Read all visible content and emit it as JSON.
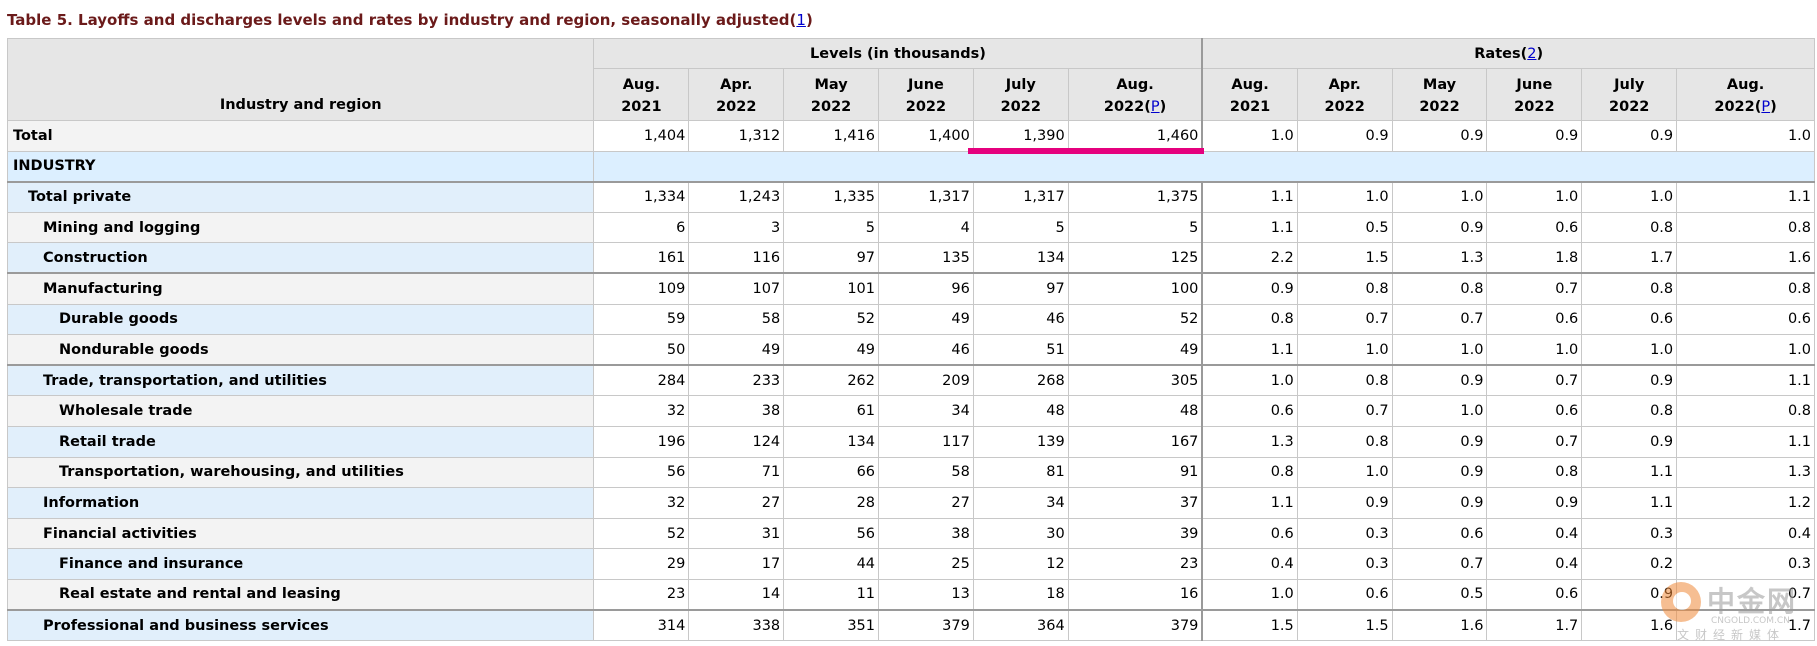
{
  "caption": {
    "title": "Table 5. Layoffs and discharges levels and rates by industry and region, seasonally adjusted",
    "footnote_open": "(",
    "footnote_link": "1",
    "footnote_close": ")"
  },
  "header": {
    "stub": "Industry and region",
    "levels_group": "Levels (in thousands)",
    "rates_group": "Rates",
    "rates_link": "2",
    "months": [
      {
        "top": "Aug.",
        "bottom": "2021"
      },
      {
        "top": "Apr.",
        "bottom": "2022"
      },
      {
        "top": "May",
        "bottom": "2022"
      },
      {
        "top": "June",
        "bottom": "2022"
      },
      {
        "top": "July",
        "bottom": "2022"
      },
      {
        "top": "Aug.",
        "bottom": "2022",
        "p_link": "P"
      }
    ]
  },
  "rows": [
    {
      "label": "Total",
      "indent": 0,
      "levels": [
        "1,404",
        "1,312",
        "1,416",
        "1,400",
        "1,390",
        "1,460"
      ],
      "rates": [
        "1.0",
        "0.9",
        "0.9",
        "0.9",
        "0.9",
        "1.0"
      ]
    },
    {
      "label": "INDUSTRY",
      "indent": 0,
      "section": true
    },
    {
      "label": "Total private",
      "indent": 1,
      "levels": [
        "1,334",
        "1,243",
        "1,335",
        "1,317",
        "1,317",
        "1,375"
      ],
      "rates": [
        "1.1",
        "1.0",
        "1.0",
        "1.0",
        "1.0",
        "1.1"
      ]
    },
    {
      "label": "Mining and logging",
      "indent": 2,
      "levels": [
        "6",
        "3",
        "5",
        "4",
        "5",
        "5"
      ],
      "rates": [
        "1.1",
        "0.5",
        "0.9",
        "0.6",
        "0.8",
        "0.8"
      ]
    },
    {
      "label": "Construction",
      "indent": 2,
      "levels": [
        "161",
        "116",
        "97",
        "135",
        "134",
        "125"
      ],
      "rates": [
        "2.2",
        "1.5",
        "1.3",
        "1.8",
        "1.7",
        "1.6"
      ]
    },
    {
      "label": "Manufacturing",
      "indent": 2,
      "levels": [
        "109",
        "107",
        "101",
        "96",
        "97",
        "100"
      ],
      "rates": [
        "0.9",
        "0.8",
        "0.8",
        "0.7",
        "0.8",
        "0.8"
      ]
    },
    {
      "label": "Durable goods",
      "indent": 3,
      "levels": [
        "59",
        "58",
        "52",
        "49",
        "46",
        "52"
      ],
      "rates": [
        "0.8",
        "0.7",
        "0.7",
        "0.6",
        "0.6",
        "0.6"
      ]
    },
    {
      "label": "Nondurable goods",
      "indent": 3,
      "levels": [
        "50",
        "49",
        "49",
        "46",
        "51",
        "49"
      ],
      "rates": [
        "1.1",
        "1.0",
        "1.0",
        "1.0",
        "1.0",
        "1.0"
      ]
    },
    {
      "label": "Trade, transportation, and utilities",
      "indent": 2,
      "levels": [
        "284",
        "233",
        "262",
        "209",
        "268",
        "305"
      ],
      "rates": [
        "1.0",
        "0.8",
        "0.9",
        "0.7",
        "0.9",
        "1.1"
      ]
    },
    {
      "label": "Wholesale trade",
      "indent": 3,
      "levels": [
        "32",
        "38",
        "61",
        "34",
        "48",
        "48"
      ],
      "rates": [
        "0.6",
        "0.7",
        "1.0",
        "0.6",
        "0.8",
        "0.8"
      ]
    },
    {
      "label": "Retail trade",
      "indent": 3,
      "levels": [
        "196",
        "124",
        "134",
        "117",
        "139",
        "167"
      ],
      "rates": [
        "1.3",
        "0.8",
        "0.9",
        "0.7",
        "0.9",
        "1.1"
      ]
    },
    {
      "label": "Transportation, warehousing, and utilities",
      "indent": 3,
      "levels": [
        "56",
        "71",
        "66",
        "58",
        "81",
        "91"
      ],
      "rates": [
        "0.8",
        "1.0",
        "0.9",
        "0.8",
        "1.1",
        "1.3"
      ]
    },
    {
      "label": "Information",
      "indent": 2,
      "levels": [
        "32",
        "27",
        "28",
        "27",
        "34",
        "37"
      ],
      "rates": [
        "1.1",
        "0.9",
        "0.9",
        "0.9",
        "1.1",
        "1.2"
      ]
    },
    {
      "label": "Financial activities",
      "indent": 2,
      "levels": [
        "52",
        "31",
        "56",
        "38",
        "30",
        "39"
      ],
      "rates": [
        "0.6",
        "0.3",
        "0.6",
        "0.4",
        "0.3",
        "0.4"
      ]
    },
    {
      "label": "Finance and insurance",
      "indent": 3,
      "levels": [
        "29",
        "17",
        "44",
        "25",
        "12",
        "23"
      ],
      "rates": [
        "0.4",
        "0.3",
        "0.7",
        "0.4",
        "0.2",
        "0.3"
      ]
    },
    {
      "label": "Real estate and rental and leasing",
      "indent": 3,
      "levels": [
        "23",
        "14",
        "11",
        "13",
        "18",
        "16"
      ],
      "rates": [
        "1.0",
        "0.6",
        "0.5",
        "0.6",
        "0.9",
        "0.7"
      ]
    },
    {
      "label": "Professional and business services",
      "indent": 2,
      "levels": [
        "314",
        "338",
        "351",
        "379",
        "364",
        "379"
      ],
      "rates": [
        "1.5",
        "1.5",
        "1.6",
        "1.7",
        "1.6",
        "1.7"
      ]
    }
  ],
  "highlight": {
    "color": "#e5007e"
  },
  "watermark": {
    "cn": "中金网",
    "en": "CNGOLD.COM.CN",
    "sub": "文财经新媒体"
  }
}
